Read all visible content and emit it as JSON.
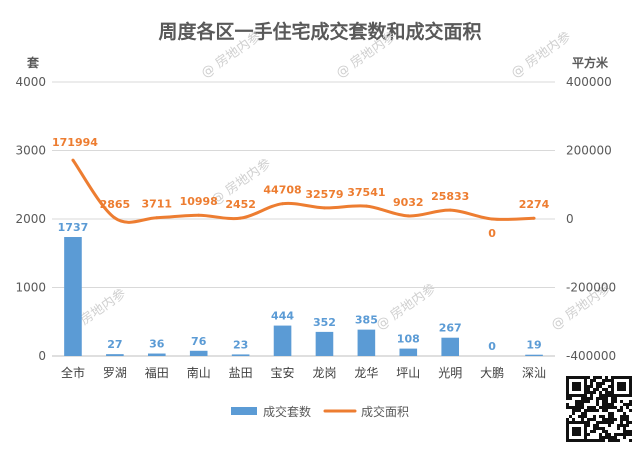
{
  "chart_data": {
    "type": "bar",
    "title": "周度各区一手住宅成交套数和成交面积",
    "ylabel": "套",
    "y2label": "平方米",
    "ylim": [
      0,
      4000
    ],
    "y2lim": [
      -400000,
      400000
    ],
    "yticks": [
      "0",
      "1000",
      "2000",
      "3000",
      "4000"
    ],
    "y2ticks": [
      "-400000",
      "-200000",
      "0",
      "200000",
      "400000"
    ],
    "categories": [
      "全市",
      "罗湖",
      "福田",
      "南山",
      "盐田",
      "宝安",
      "龙岗",
      "龙华",
      "坪山",
      "光明",
      "大鹏",
      "深汕"
    ],
    "series": [
      {
        "name": "成交套数",
        "type": "bar",
        "axis": "left",
        "color": "#5b9bd5",
        "values": [
          1737,
          27,
          36,
          76,
          23,
          444,
          352,
          385,
          108,
          267,
          0,
          19
        ],
        "labels": [
          "1737",
          "27",
          "36",
          "76",
          "23",
          "444",
          "352",
          "385",
          "108",
          "267",
          "0",
          "19"
        ]
      },
      {
        "name": "成交面积",
        "type": "line",
        "axis": "right",
        "color": "#ed7d31",
        "values": [
          171994,
          2865,
          3711,
          10998,
          2452,
          44708,
          32579,
          37541,
          9032,
          25833,
          0,
          2274
        ],
        "labels": [
          "171994",
          "2865",
          "3711",
          "10998",
          "2452",
          "44708",
          "32579",
          "37541",
          "9032",
          "25833",
          "0",
          "2274"
        ]
      }
    ],
    "legend": {
      "position": "bottom",
      "items": [
        "成交套数",
        "成交面积"
      ]
    },
    "grid": true
  },
  "watermark": "房地内参"
}
